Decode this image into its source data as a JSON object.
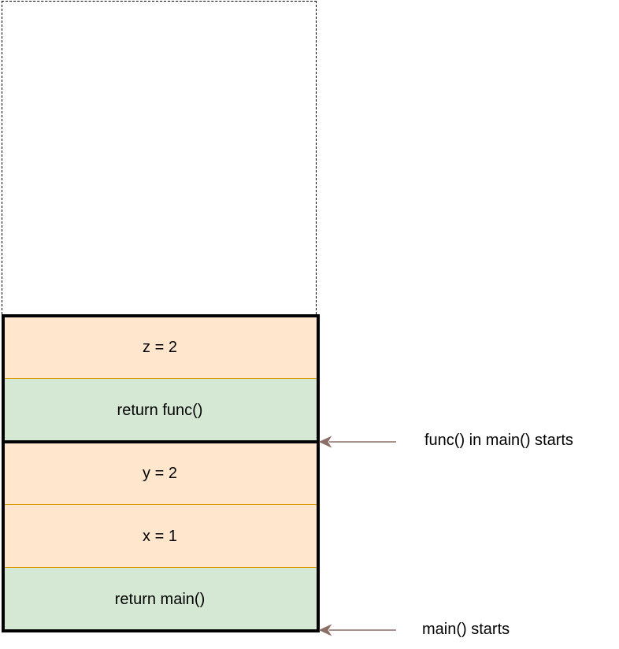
{
  "stack": {
    "func_frame": {
      "cells": [
        {
          "text": "z = 2",
          "kind": "variable"
        },
        {
          "text": "return func()",
          "kind": "return"
        }
      ]
    },
    "main_frame": {
      "cells": [
        {
          "text": "y = 2",
          "kind": "variable"
        },
        {
          "text": "x = 1",
          "kind": "variable"
        },
        {
          "text": "return main()",
          "kind": "return"
        }
      ]
    }
  },
  "annotations": {
    "func_start": "func() in main() starts",
    "main_start": "main() starts"
  },
  "colors": {
    "variable_fill": "#ffe6cc",
    "return_fill": "#d5e8d4",
    "separator": "#d79b00",
    "arrow": "#8b6f66",
    "frame_border": "#000000"
  }
}
